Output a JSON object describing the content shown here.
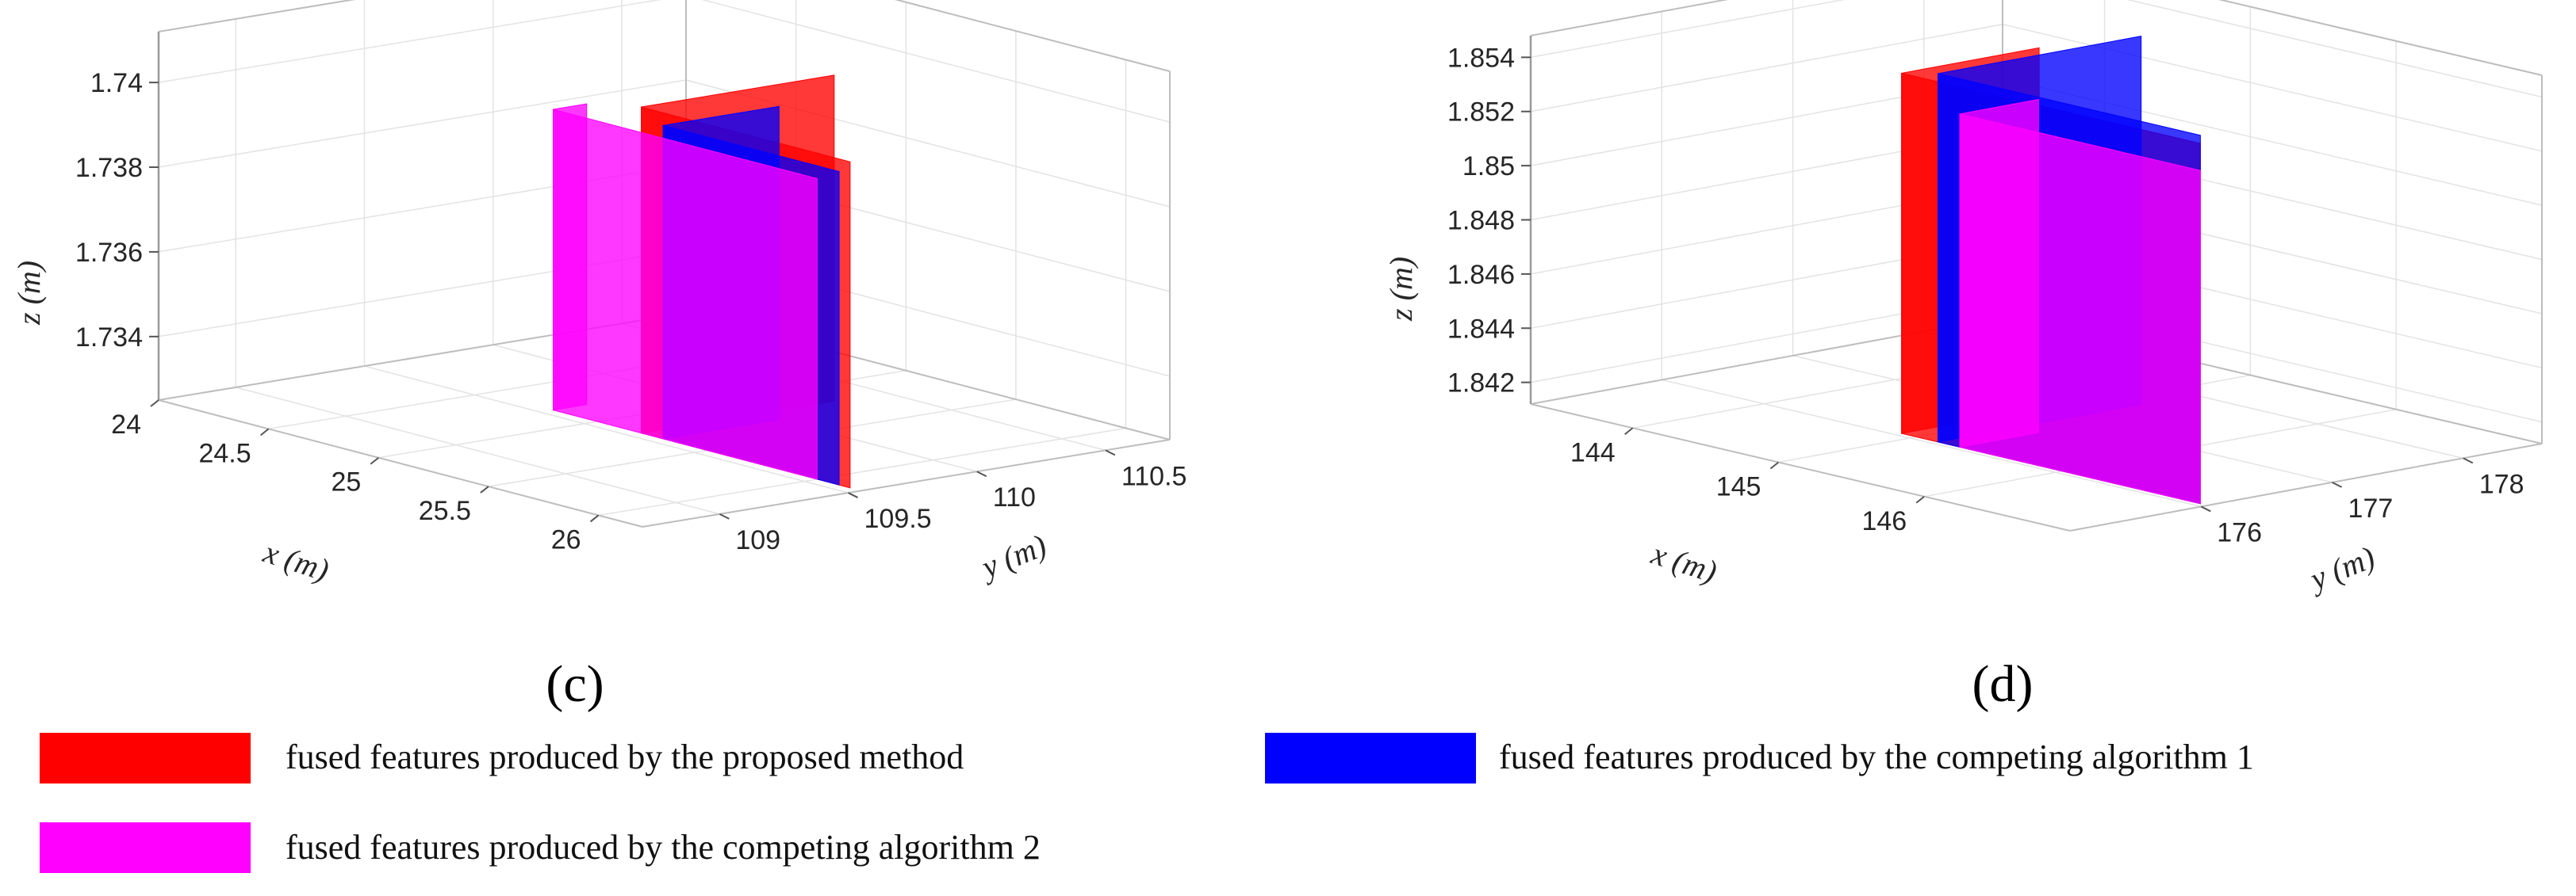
{
  "chart_data": [
    {
      "type": "3d-planes",
      "panel_label": "(c)",
      "xlabel": "x (m)",
      "ylabel": "y (m)",
      "zlabel": "z (m)",
      "xlim": [
        24,
        26.2
      ],
      "ylim": [
        108.7,
        110.75
      ],
      "zlim": [
        1.7325,
        1.7412
      ],
      "x_ticks": [
        "24",
        "24.5",
        "25",
        "25.5",
        "26"
      ],
      "x_tick_values": [
        24,
        24.5,
        25,
        25.5,
        26
      ],
      "y_ticks": [
        "109",
        "109.5",
        "110",
        "110.5"
      ],
      "y_tick_values": [
        109,
        109.5,
        110,
        110.5
      ],
      "z_ticks": [
        "1.734",
        "1.736",
        "1.738",
        "1.74"
      ],
      "z_tick_values": [
        1.734,
        1.736,
        1.738,
        1.74
      ],
      "grid": true,
      "series": [
        {
          "color": "#ff0000",
          "x_plane": 25.2,
          "y_plane": 109.55,
          "x_span": [
            25.2,
            26.15
          ],
          "y_span": [
            109.55,
            110.3
          ],
          "z_span": [
            1.7325,
            1.7402
          ]
        },
        {
          "color": "#0000ff",
          "x_plane": 25.3,
          "y_plane": 109.55,
          "x_span": [
            25.3,
            26.1
          ],
          "y_span": [
            109.55,
            110.0
          ],
          "z_span": [
            1.7325,
            1.7399
          ]
        },
        {
          "color": "#ff00ff",
          "x_plane": 24.8,
          "y_plane": 109.55,
          "x_span": [
            24.8,
            26.0
          ],
          "y_span": [
            109.55,
            109.68
          ],
          "z_span": [
            1.7325,
            1.7396
          ]
        }
      ]
    },
    {
      "type": "3d-planes",
      "panel_label": "(d)",
      "xlabel": "x (m)",
      "ylabel": "y (m)",
      "zlabel": "z (m)",
      "xlim": [
        143.3,
        147.0
      ],
      "ylim": [
        175.0,
        178.6
      ],
      "zlim": [
        1.8412,
        1.8548
      ],
      "x_ticks": [
        "144",
        "145",
        "146"
      ],
      "x_tick_values": [
        144,
        145,
        146
      ],
      "y_ticks": [
        "176",
        "177",
        "178"
      ],
      "y_tick_values": [
        176,
        177,
        178
      ],
      "z_ticks": [
        "1.842",
        "1.844",
        "1.846",
        "1.848",
        "1.85",
        "1.852",
        "1.854"
      ],
      "z_tick_values": [
        1.842,
        1.844,
        1.846,
        1.848,
        1.85,
        1.852,
        1.854
      ],
      "grid": true,
      "series": [
        {
          "color": "#ff0000",
          "x_plane": 144.9,
          "y_plane": 176.05,
          "x_span": [
            144.9,
            146.95
          ],
          "y_span": [
            176.05,
            177.1
          ],
          "z_span": [
            1.8412,
            1.8545
          ]
        },
        {
          "color": "#0000ff",
          "x_plane": 145.15,
          "y_plane": 176.05,
          "x_span": [
            145.15,
            146.95
          ],
          "y_span": [
            176.05,
            177.6
          ],
          "z_span": [
            1.8412,
            1.8548
          ]
        },
        {
          "color": "#ff00ff",
          "x_plane": 145.3,
          "y_plane": 176.05,
          "x_span": [
            145.3,
            146.95
          ],
          "y_span": [
            176.05,
            176.65
          ],
          "z_span": [
            1.8412,
            1.8535
          ]
        }
      ]
    }
  ],
  "legend": {
    "items": [
      {
        "label": "fused features produced by the proposed method",
        "color": "#ff0000"
      },
      {
        "label": "fused features produced by the competing algorithm 1",
        "color": "#0000ff"
      },
      {
        "label": "fused features produced by the competing algorithm 2",
        "color": "#ff00ff"
      }
    ]
  }
}
